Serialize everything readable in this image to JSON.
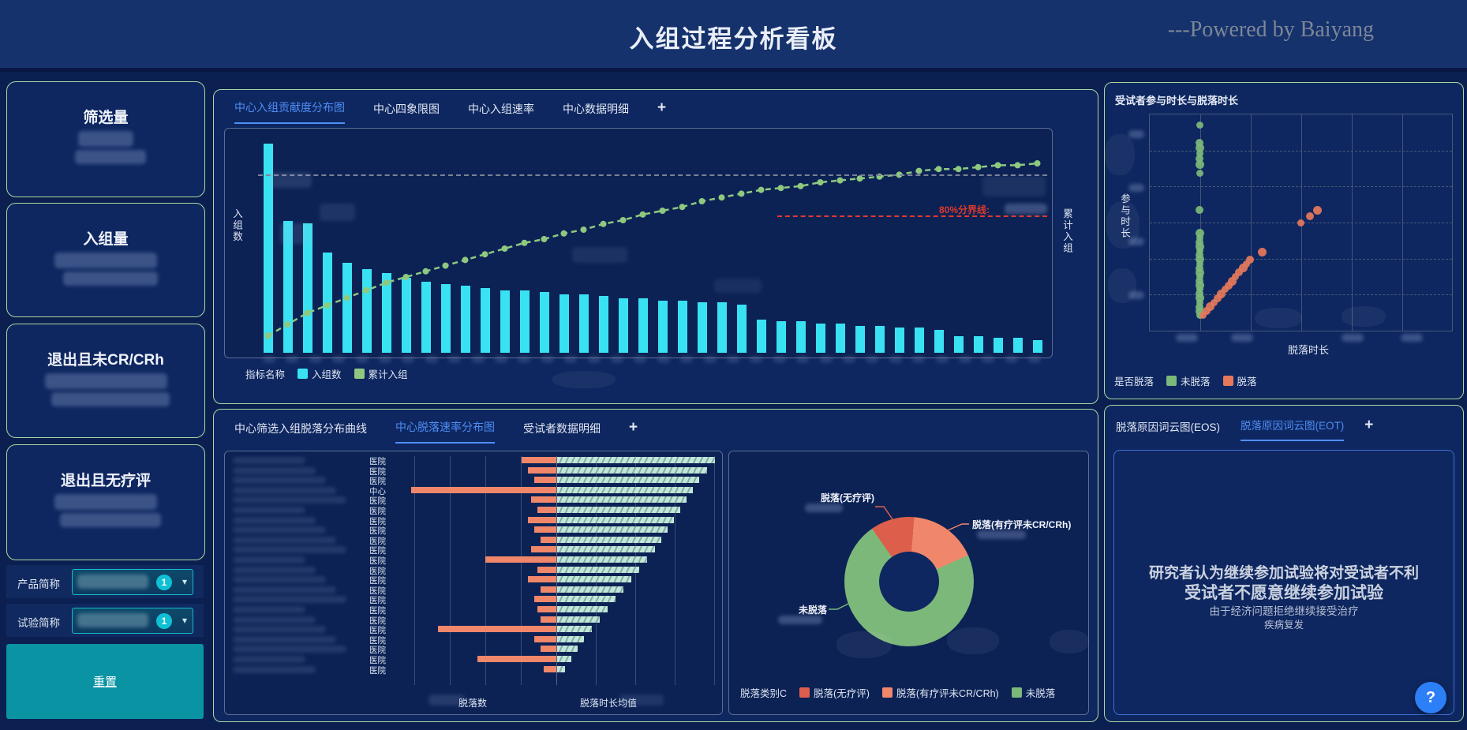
{
  "header": {
    "title": "入组过程分析看板",
    "powered_by": "---Powered by Baiyang"
  },
  "sidebar": {
    "kpi_cards": [
      {
        "label": "筛选量"
      },
      {
        "label": "入组量"
      },
      {
        "label": "退出且未CR/CRh"
      },
      {
        "label": "退出且无疗评"
      }
    ],
    "filters": [
      {
        "label": "产品简称",
        "badge": "1"
      },
      {
        "label": "试验简称",
        "badge": "1"
      }
    ],
    "reset_label": "重置"
  },
  "pareto": {
    "tabs": [
      {
        "label": "中心入组贡献度分布图",
        "active": true
      },
      {
        "label": "中心四象限图",
        "active": false
      },
      {
        "label": "中心入组速率",
        "active": false
      },
      {
        "label": "中心数据明细",
        "active": false
      },
      {
        "label": "+",
        "active": false
      }
    ],
    "ylabel_left": "入组数",
    "ylabel_right": "累计入组",
    "threshold_label": "80%分界线:",
    "legend_title": "指标名称",
    "legend": [
      {
        "label": "入组数",
        "color": "#39e2f2"
      },
      {
        "label": "累计入组",
        "color": "#8fc97f"
      }
    ],
    "chart_data": {
      "type": "bar",
      "series": [
        {
          "name": "入组数",
          "type": "bar",
          "values": [
            100,
            63,
            62,
            48,
            43,
            40,
            38,
            36,
            34,
            33,
            32,
            31,
            30,
            30,
            29,
            28,
            28,
            27,
            26,
            26,
            25,
            25,
            24,
            24,
            23,
            16,
            15,
            15,
            14,
            14,
            13,
            13,
            12,
            12,
            11,
            8,
            8,
            7,
            7,
            6
          ]
        },
        {
          "name": "累计入组",
          "type": "line",
          "values": [
            9,
            15,
            21,
            25,
            29,
            33,
            37,
            40,
            43,
            46,
            49,
            52,
            55,
            58,
            60,
            63,
            65,
            68,
            70,
            73,
            75,
            77,
            80,
            82,
            84,
            86,
            87,
            88,
            90,
            91,
            92,
            93,
            94,
            96,
            97,
            97,
            98,
            99,
            99,
            100
          ]
        }
      ],
      "ylabel": "入组数",
      "y2label": "累计入组",
      "threshold_pct": 80
    }
  },
  "scatter": {
    "title": "受试者参与时长与脱落时长",
    "xlabel": "脱落时长",
    "ylabel": "参与时长",
    "legend_title": "是否脱落",
    "legend": [
      {
        "label": "未脱落",
        "color": "#7cb87a"
      },
      {
        "label": "脱落",
        "color": "#e5785c"
      }
    ],
    "chart_data": {
      "type": "scatter",
      "series": [
        {
          "name": "未脱落",
          "color": "#7cb87a",
          "points": [
            [
              0.165,
              0.05
            ],
            [
              0.165,
              0.13
            ],
            [
              0.165,
              0.155
            ],
            [
              0.165,
              0.18
            ],
            [
              0.165,
              0.205
            ],
            [
              0.165,
              0.23
            ],
            [
              0.165,
              0.27
            ],
            [
              0.165,
              0.44
            ],
            [
              0.165,
              0.55
            ],
            [
              0.165,
              0.57
            ],
            [
              0.165,
              0.59
            ],
            [
              0.165,
              0.61
            ],
            [
              0.165,
              0.63
            ],
            [
              0.165,
              0.65
            ],
            [
              0.165,
              0.67
            ],
            [
              0.165,
              0.69
            ],
            [
              0.165,
              0.71
            ],
            [
              0.165,
              0.73
            ],
            [
              0.165,
              0.75
            ],
            [
              0.165,
              0.77
            ],
            [
              0.165,
              0.79
            ],
            [
              0.165,
              0.81
            ],
            [
              0.165,
              0.83
            ],
            [
              0.165,
              0.85
            ],
            [
              0.165,
              0.87
            ],
            [
              0.165,
              0.89
            ],
            [
              0.165,
              0.91
            ],
            [
              0.165,
              0.93
            ]
          ]
        },
        {
          "name": "脱落",
          "color": "#e5785c",
          "points": [
            [
              0.175,
              0.93
            ],
            [
              0.188,
              0.91
            ],
            [
              0.2,
              0.89
            ],
            [
              0.212,
              0.87
            ],
            [
              0.224,
              0.85
            ],
            [
              0.236,
              0.83
            ],
            [
              0.248,
              0.81
            ],
            [
              0.26,
              0.79
            ],
            [
              0.272,
              0.77
            ],
            [
              0.284,
              0.75
            ],
            [
              0.296,
              0.73
            ],
            [
              0.308,
              0.71
            ],
            [
              0.32,
              0.69
            ],
            [
              0.332,
              0.67
            ],
            [
              0.373,
              0.635
            ],
            [
              0.5,
              0.5
            ],
            [
              0.53,
              0.47
            ],
            [
              0.556,
              0.445
            ]
          ]
        }
      ]
    }
  },
  "bottom": {
    "tabs": [
      {
        "label": "中心筛选入组脱落分布曲线",
        "active": false
      },
      {
        "label": "中心脱落速率分布图",
        "active": true
      },
      {
        "label": "受试者数据明细",
        "active": false
      },
      {
        "label": "+",
        "active": false
      }
    ]
  },
  "tornado": {
    "xlabel_count": "脱落数",
    "xlabel_duration": "脱落时长均值",
    "chart_data": {
      "type": "bar",
      "row_labels": [
        "医院",
        "医院",
        "医院",
        "中心",
        "医院",
        "医院",
        "医院",
        "医院",
        "医院",
        "医院",
        "医院",
        "医院",
        "医院",
        "医院",
        "医院",
        "医院",
        "医院",
        "医院",
        "医院",
        "医院",
        "医院",
        "医院"
      ],
      "series": [
        {
          "name": "脱落数",
          "values": [
            22,
            18,
            14,
            92,
            16,
            12,
            18,
            14,
            10,
            16,
            45,
            12,
            18,
            10,
            14,
            12,
            10,
            75,
            14,
            10,
            50,
            8
          ]
        },
        {
          "name": "脱落时长均值",
          "values": [
            100,
            95,
            90,
            86,
            82,
            78,
            74,
            70,
            66,
            62,
            57,
            52,
            47,
            42,
            37,
            32,
            27,
            22,
            17,
            13,
            9,
            5
          ]
        }
      ]
    }
  },
  "donut": {
    "legend_title": "脱落类别C",
    "callouts": [
      "脱落(无疗评)",
      "脱落(有疗评未CR/CRh)",
      "未脱落"
    ],
    "chart_data": {
      "type": "pie",
      "slices": [
        {
          "label": "脱落(无疗评)",
          "value": 11,
          "color": "#dd5f4b"
        },
        {
          "label": "脱落(有疗评未CR/CRh)",
          "value": 17,
          "color": "#f0876a"
        },
        {
          "label": "未脱落",
          "value": 72,
          "color": "#7cb87a"
        }
      ]
    }
  },
  "wordcloud": {
    "tabs": [
      {
        "label": "脱落原因词云图(EOS)",
        "active": false
      },
      {
        "label": "脱落原因词云图(EOT)",
        "active": true
      },
      {
        "label": "+",
        "active": false
      }
    ],
    "words": [
      {
        "text": "研究者认为继续参加试验将对受试者不利",
        "size": 19,
        "color": "#ccd3e0"
      },
      {
        "text": "受试者不愿意继续参加试验",
        "size": 21,
        "color": "#c8d0de"
      },
      {
        "text": "由于经济问题拒绝继续接受治疗",
        "size": 13.5,
        "color": "#b9c2d4"
      },
      {
        "text": "疾病复发",
        "size": 12.5,
        "color": "#b9c2d4"
      }
    ]
  },
  "help": {
    "label": "?"
  }
}
